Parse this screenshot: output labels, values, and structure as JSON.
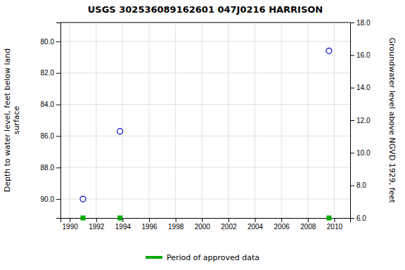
{
  "chart_data": {
    "type": "scatter",
    "title": "USGS 302536089162601 047J0216  HARRISON",
    "ylabel": "Depth to water level, feet below land\nsurface",
    "y2label": "Groundwater level above NGVD 1929, feet",
    "series": [
      {
        "x": [
          1991.0,
          1993.8,
          2009.6
        ],
        "values": [
          90.0,
          85.7,
          80.6
        ],
        "color": "#0000cc",
        "marker": "circle"
      },
      {
        "name": "Period of approved data",
        "x": [
          1991.0,
          1993.8,
          2009.6
        ],
        "color": "#00aa00",
        "marker": "square"
      }
    ],
    "xlim": [
      1989.3,
      2011.2
    ],
    "xticks": [
      1990,
      1992,
      1994,
      1996,
      1998,
      2000,
      2002,
      2004,
      2006,
      2008,
      2010
    ],
    "ylim": [
      91.2,
      78.8
    ],
    "yticks": [
      {
        "value": 80.0,
        "label": "80.0"
      },
      {
        "value": 82.0,
        "label": "82.0"
      },
      {
        "value": 84.0,
        "label": "84.0"
      },
      {
        "value": 86.0,
        "label": "86.0"
      },
      {
        "value": 88.0,
        "label": "88.0"
      },
      {
        "value": 90.0,
        "label": "90.0"
      }
    ],
    "y2lim": [
      6.0,
      18.0
    ],
    "y2ticks": [
      {
        "value": 6.0,
        "label": "6.0"
      },
      {
        "value": 8.0,
        "label": "8.0"
      },
      {
        "value": 10.0,
        "label": "10.0"
      },
      {
        "value": 12.0,
        "label": "12.0"
      },
      {
        "value": 14.0,
        "label": "14.0"
      },
      {
        "value": 16.0,
        "label": "16.0"
      },
      {
        "value": 18.0,
        "label": "18.0"
      }
    ],
    "grid": true,
    "legend": "bottom"
  }
}
